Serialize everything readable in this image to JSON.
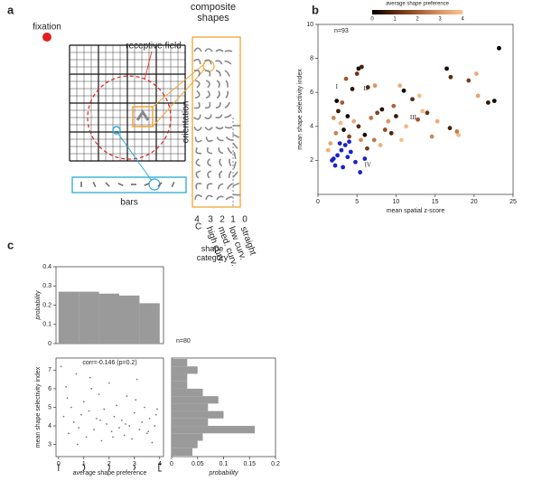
{
  "diagram": {
    "label": "a",
    "fixation": "fixation",
    "receptive_field": "receptive field",
    "composite_title": "composite shapes",
    "orientation": "orientation",
    "bars": "bars",
    "category_numbers": [
      "4",
      "3",
      "2",
      "1",
      "0"
    ],
    "category_names": [
      "C",
      "high curv.",
      "med. curv.",
      "low curv.",
      "straight"
    ],
    "category_title": "shape category"
  },
  "chart_data": [
    {
      "type": "scatter",
      "label": "b",
      "x_label": "mean spatial z-score",
      "y_label": "mean shape selectivity index",
      "annotation": "n=93",
      "xlim": [
        0,
        25
      ],
      "xticks": [
        0,
        5,
        10,
        15,
        20,
        25
      ],
      "ylim": [
        0,
        10
      ],
      "yticks": [
        2,
        4,
        6,
        8,
        10
      ],
      "x": [
        23.2,
        16.5,
        17.0,
        19.3,
        20.3,
        21.8,
        22.6,
        5.2,
        5.0,
        5.6,
        3.6,
        4.4,
        6.4,
        7.3,
        11.0,
        10.5,
        12.1,
        13.0,
        9.7,
        8.2,
        7.6,
        6.8,
        9.0,
        10.0,
        11.3,
        12.8,
        14.0,
        15.3,
        16.9,
        18.0,
        17.8,
        14.6,
        13.4,
        8.6,
        7.2,
        6.0,
        5.2,
        4.6,
        3.8,
        2.9,
        2.3,
        1.6,
        1.3,
        2.0,
        2.6,
        3.3,
        4.0,
        3.1,
        2.4,
        9.4,
        8.0,
        6.3,
        5.5,
        10.7,
        20.5
      ],
      "y": [
        8.6,
        7.4,
        6.9,
        6.7,
        7.1,
        5.4,
        5.5,
        7.4,
        7.1,
        7.5,
        6.8,
        6.2,
        6.3,
        6.4,
        6.1,
        6.4,
        5.6,
        5.8,
        5.2,
        5.0,
        4.8,
        4.5,
        4.3,
        4.6,
        4.0,
        4.4,
        4.8,
        4.3,
        3.9,
        3.5,
        3.7,
        3.4,
        4.9,
        3.8,
        3.2,
        3.5,
        4.0,
        4.3,
        4.6,
        4.2,
        3.6,
        3.0,
        2.6,
        4.5,
        4.9,
        3.8,
        3.4,
        5.4,
        5.5,
        3.6,
        2.9,
        2.7,
        3.2,
        3.2,
        5.8
      ],
      "color_values": [
        0,
        0.3,
        1,
        1.5,
        3.5,
        0.5,
        0.2,
        0.3,
        1.2,
        0.8,
        2,
        0.5,
        1,
        3,
        0.2,
        3.5,
        1,
        3.8,
        2.2,
        0.4,
        1.5,
        2.5,
        3,
        0.6,
        3.8,
        2,
        1.2,
        3.5,
        0.8,
        3.8,
        2.6,
        2.8,
        3.8,
        1.8,
        2.5,
        0.2,
        1,
        3.4,
        0.1,
        3.8,
        2.7,
        3.3,
        3.6,
        2.8,
        0.7,
        0.3,
        1.6,
        2,
        0.1,
        0.9,
        3.6,
        1.4,
        2.9,
        3.9,
        3.3
      ],
      "colorbar": {
        "label": "average shape preference",
        "lim": [
          0,
          4
        ],
        "ticks": [
          0,
          1,
          2,
          3,
          4
        ],
        "colors": [
          "#000000",
          "#5a2a12",
          "#a0582e",
          "#dd9462",
          "#fbc48e"
        ]
      },
      "highlight": {
        "color": "#1c22c8",
        "x": [
          2.0,
          2.5,
          3.0,
          3.5,
          4.0,
          3.2,
          2.2,
          4.8,
          5.4,
          6.0,
          3.8,
          2.8,
          4.2,
          1.8
        ],
        "y": [
          2.1,
          2.3,
          2.6,
          2.9,
          3.1,
          1.6,
          1.7,
          1.9,
          1.3,
          2.1,
          2.2,
          3.0,
          2.5,
          2.0
        ]
      },
      "annotations": [
        {
          "text": "I",
          "x": 2.4,
          "y": 6.3
        },
        {
          "text": "II",
          "x": 6.1,
          "y": 6.2
        },
        {
          "text": "III",
          "x": 12.2,
          "y": 4.5
        },
        {
          "text": "IV",
          "x": 6.4,
          "y": 1.7
        }
      ]
    },
    {
      "type": "histogram",
      "label": "c",
      "y_label": "probability",
      "color": "#9a9a9a",
      "bins": [
        0,
        0.8,
        1.6,
        2.4,
        3.2,
        4.0
      ],
      "values": [
        0.27,
        0.27,
        0.26,
        0.25,
        0.21
      ],
      "xlim": [
        -0.1,
        4.15
      ],
      "ylim": [
        0,
        0.4
      ],
      "yticks": [
        0,
        0.1,
        0.2,
        0.3,
        0.4
      ]
    },
    {
      "type": "scatter",
      "annotation": "corr=-0.146 (p=0.2)",
      "sample_size": "n=80",
      "x_label": "average shape preference",
      "y_label": "mean shape selectivity index",
      "color": "#777777",
      "xlim": [
        -0.1,
        4.15
      ],
      "xticks": [
        0,
        1,
        2,
        3,
        4
      ],
      "ylim": [
        2.35,
        7.65
      ],
      "yticks": [
        3,
        4,
        5,
        6,
        7
      ],
      "x": [
        0.1,
        0.2,
        0.3,
        0.4,
        0.5,
        0.6,
        0.7,
        0.8,
        0.9,
        1.0,
        1.1,
        1.2,
        1.3,
        1.4,
        1.5,
        1.6,
        1.7,
        1.8,
        1.9,
        2.0,
        2.1,
        2.2,
        2.3,
        2.4,
        2.5,
        2.6,
        2.7,
        2.8,
        2.9,
        3.0,
        3.1,
        3.2,
        3.3,
        3.4,
        3.5,
        3.6,
        3.7,
        3.8,
        3.9,
        0.35,
        0.75,
        1.25,
        1.65,
        2.15,
        2.65,
        3.05,
        3.55,
        3.85
      ],
      "y": [
        7.2,
        4.5,
        6.1,
        3.6,
        5.0,
        4.2,
        6.8,
        3.9,
        4.6,
        5.3,
        3.4,
        4.8,
        6.0,
        3.8,
        4.4,
        5.7,
        3.2,
        4.9,
        4.1,
        6.3,
        3.7,
        4.5,
        5.1,
        3.9,
        4.3,
        3.5,
        5.6,
        4.0,
        3.3,
        4.7,
        6.5,
        3.8,
        4.2,
        5.0,
        3.6,
        4.4,
        3.1,
        4.0,
        4.9,
        5.5,
        3.0,
        6.6,
        4.3,
        3.4,
        4.1,
        5.4,
        3.7,
        4.6
      ]
    },
    {
      "type": "histogram",
      "orientation": "horizontal",
      "x_label": "probability",
      "color": "#9a9a9a",
      "bins": [
        2.4,
        2.8,
        3.2,
        3.6,
        4.0,
        4.4,
        4.8,
        5.2,
        5.6,
        6.0,
        6.4,
        6.8,
        7.2,
        7.6
      ],
      "values": [
        0.04,
        0.05,
        0.06,
        0.16,
        0.07,
        0.1,
        0.07,
        0.09,
        0.06,
        0.03,
        0.03,
        0.05,
        0.03
      ],
      "xlim": [
        0,
        0.2
      ],
      "xticks": [
        0,
        0.05,
        0.1,
        0.15,
        0.2
      ],
      "ylim": [
        2.35,
        7.65
      ]
    }
  ]
}
